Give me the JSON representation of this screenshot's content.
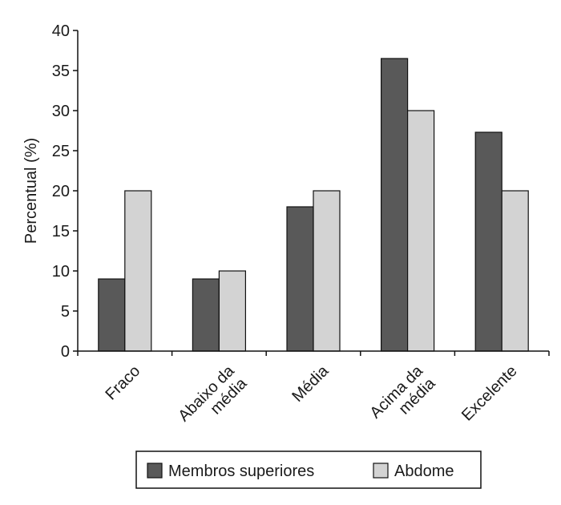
{
  "chart_data": {
    "type": "bar",
    "title": "",
    "xlabel": "",
    "ylabel": "Percentual (%)",
    "ylim": [
      0,
      40
    ],
    "yticks": [
      0,
      5,
      10,
      15,
      20,
      25,
      30,
      35,
      40
    ],
    "grid": false,
    "legend_position": "bottom",
    "categories": [
      [
        "Fraco"
      ],
      [
        "Abaixo da",
        "média"
      ],
      [
        "Média"
      ],
      [
        "Acima da",
        "média"
      ],
      [
        "Excelente"
      ]
    ],
    "series": [
      {
        "name": "Membros superiores",
        "color": "#595959",
        "values": [
          9,
          9,
          18,
          36.5,
          27.3
        ]
      },
      {
        "name": "Abdome",
        "color": "#d3d3d3",
        "values": [
          20,
          10,
          20,
          30,
          20
        ]
      }
    ]
  }
}
